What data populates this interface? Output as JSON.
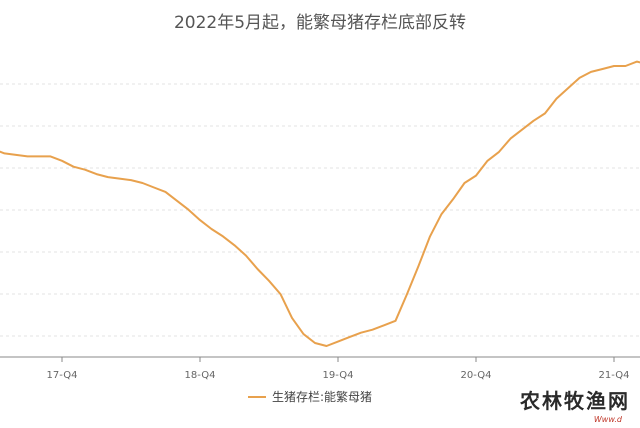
{
  "chart_data": {
    "type": "line",
    "title": "2022年5月起，能繁母猪存栏底部反转",
    "xlabel": "",
    "ylabel": "",
    "x_ticks": [
      "17-Q4",
      "18-Q4",
      "19-Q4",
      "20-Q4",
      "21-Q4"
    ],
    "x_ticks_at": [
      "2017-10",
      "2018-10",
      "2019-10",
      "2020-10",
      "2021-10"
    ],
    "grid": "horizontal",
    "legend": "bottom-center",
    "color": "#e8a14d",
    "series": [
      {
        "name": "生猪存栏:能繁母猪",
        "x": [
          "2016-12",
          "2017-01",
          "2017-02",
          "2017-03",
          "2017-04",
          "2017-05",
          "2017-06",
          "2017-07",
          "2017-08",
          "2017-09",
          "2017-10",
          "2017-11",
          "2017-12",
          "2018-01",
          "2018-02",
          "2018-03",
          "2018-04",
          "2018-05",
          "2018-06",
          "2018-07",
          "2018-08",
          "2018-09",
          "2018-10",
          "2018-11",
          "2018-12",
          "2019-01",
          "2019-02",
          "2019-03",
          "2019-04",
          "2019-05",
          "2019-06",
          "2019-07",
          "2019-08",
          "2019-09",
          "2019-10",
          "2019-11",
          "2019-12",
          "2020-01",
          "2020-02",
          "2020-03",
          "2020-04",
          "2020-05",
          "2020-06",
          "2020-07",
          "2020-08",
          "2020-09",
          "2020-10",
          "2020-11",
          "2020-12",
          "2021-01",
          "2021-02",
          "2021-03",
          "2021-04",
          "2021-05",
          "2021-06",
          "2021-07",
          "2021-08",
          "2021-09",
          "2021-10",
          "2021-11",
          "2021-12",
          "2022-01",
          "2022-02"
        ],
        "values": [
          4.4,
          4.37,
          4.34,
          4.31,
          4.28,
          4.25,
          4.24,
          4.23,
          4.23,
          4.23,
          4.2,
          4.16,
          4.14,
          4.11,
          4.09,
          4.08,
          4.07,
          4.05,
          4.02,
          3.99,
          3.93,
          3.87,
          3.8,
          3.74,
          3.69,
          3.63,
          3.56,
          3.47,
          3.39,
          3.3,
          3.14,
          3.03,
          2.97,
          2.95,
          2.98,
          3.01,
          3.04,
          3.06,
          3.09,
          3.12,
          3.3,
          3.49,
          3.69,
          3.84,
          3.94,
          4.05,
          4.1,
          4.2,
          4.26,
          4.35,
          4.41,
          4.47,
          4.52,
          4.62,
          4.69,
          4.76,
          4.8,
          4.82,
          4.84,
          4.84,
          4.87,
          4.85,
          4.79
        ]
      }
    ]
  },
  "watermark": {
    "text": "农林牧渔网",
    "sub": "Www.d"
  }
}
